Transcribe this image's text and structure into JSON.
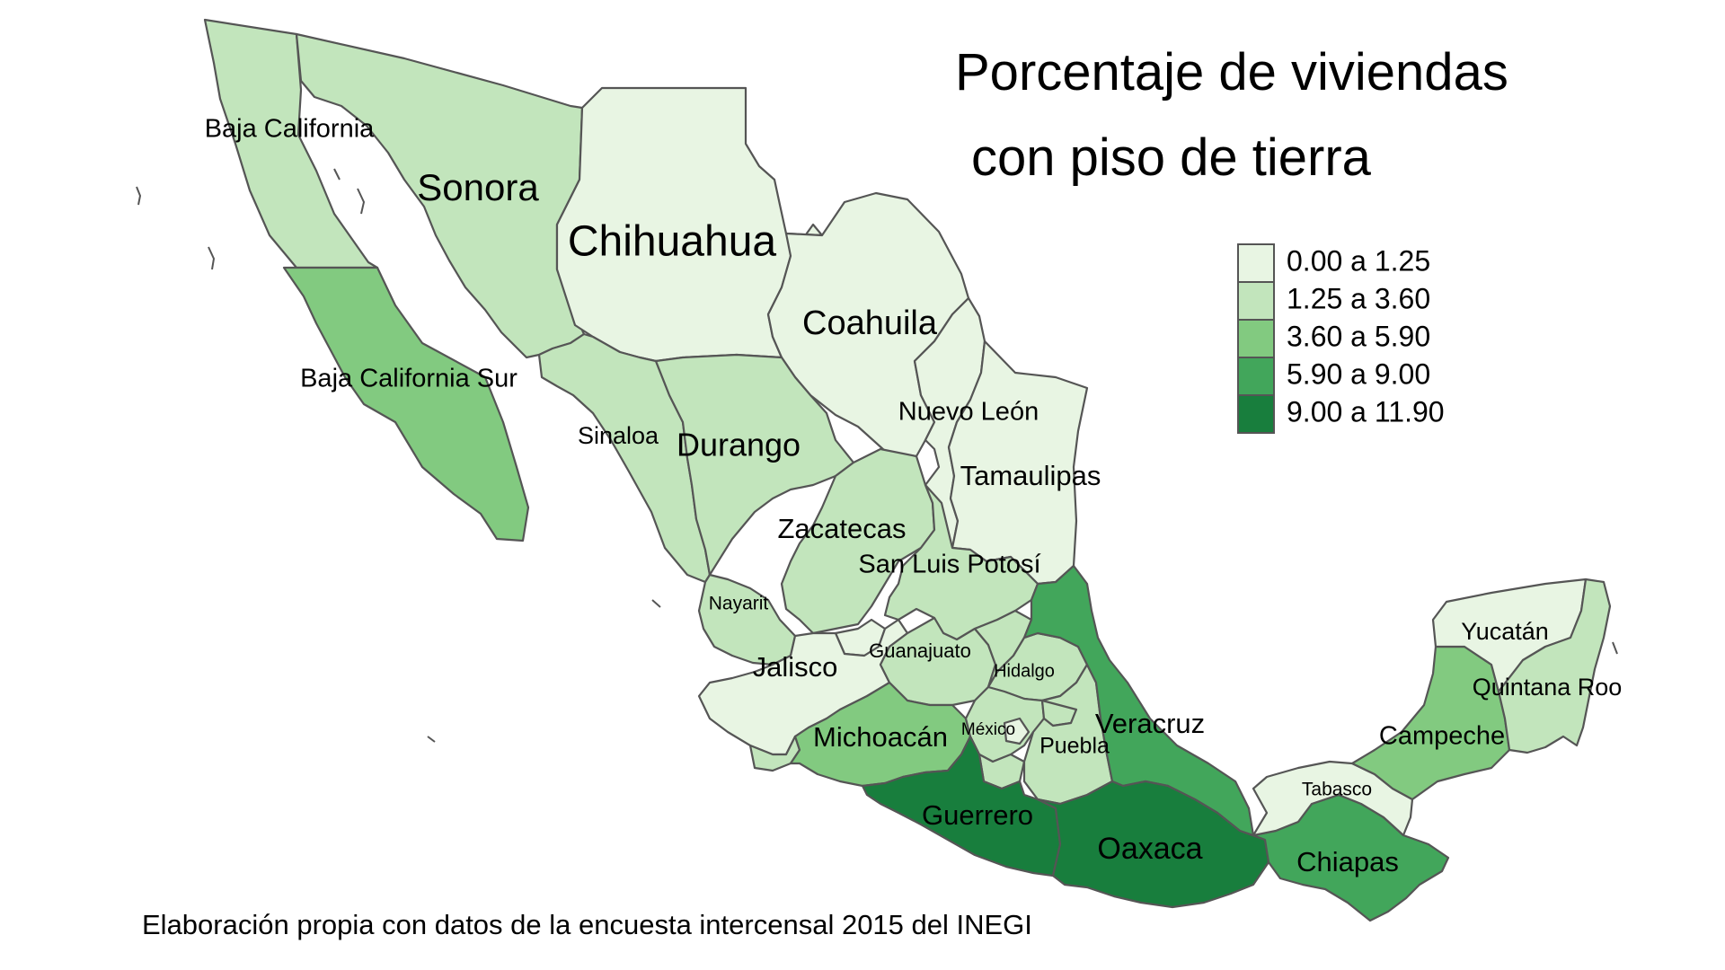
{
  "title": {
    "line1": "Porcentaje de viviendas",
    "line2": "con piso de tierra"
  },
  "legend": {
    "items": [
      {
        "label": "0.00 a 1.25",
        "color": "#e8f5e3"
      },
      {
        "label": "1.25 a 3.60",
        "color": "#c2e5bc"
      },
      {
        "label": "3.60 a 5.90",
        "color": "#82ca80"
      },
      {
        "label": "5.90 a 9.00",
        "color": "#42a65b"
      },
      {
        "label": "9.00 a 11.90",
        "color": "#187e3d"
      }
    ]
  },
  "caption": "Elaboración propia con datos de la encuesta intercensal 2015 del INEGI",
  "states": {
    "baja_california": {
      "label": "Baja California",
      "class": 1
    },
    "baja_california_sur": {
      "label": "Baja California Sur",
      "class": 2
    },
    "sonora": {
      "label": "Sonora",
      "class": 1
    },
    "chihuahua": {
      "label": "Chihuahua",
      "class": 0
    },
    "coahuila": {
      "label": "Coahuila",
      "class": 0
    },
    "nuevo_leon": {
      "label": "Nuevo León",
      "class": 0
    },
    "tamaulipas": {
      "label": "Tamaulipas",
      "class": 0
    },
    "sinaloa": {
      "label": "Sinaloa",
      "class": 1
    },
    "durango": {
      "label": "Durango",
      "class": 1
    },
    "zacatecas": {
      "label": "Zacatecas",
      "class": 1
    },
    "san_luis_potosi": {
      "label": "San Luis Potosí",
      "class": 1
    },
    "nayarit": {
      "label": "Nayarit",
      "class": 1
    },
    "aguascalientes": {
      "label": "",
      "class": 0
    },
    "jalisco": {
      "label": "Jalisco",
      "class": 0
    },
    "guanajuato": {
      "label": "Guanajuato",
      "class": 1
    },
    "queretaro": {
      "label": "",
      "class": 1
    },
    "hidalgo": {
      "label": "Hidalgo",
      "class": 1
    },
    "colima": {
      "label": "",
      "class": 1
    },
    "michoacan": {
      "label": "Michoacán",
      "class": 2
    },
    "mexico": {
      "label": "México",
      "class": 1
    },
    "cdmx": {
      "label": "",
      "class": 0
    },
    "morelos": {
      "label": "",
      "class": 1
    },
    "tlaxcala": {
      "label": "",
      "class": 1
    },
    "puebla": {
      "label": "Puebla",
      "class": 1
    },
    "veracruz": {
      "label": "Veracruz",
      "class": 3
    },
    "guerrero": {
      "label": "Guerrero",
      "class": 4
    },
    "oaxaca": {
      "label": "Oaxaca",
      "class": 4
    },
    "chiapas": {
      "label": "Chiapas",
      "class": 3
    },
    "tabasco": {
      "label": "Tabasco",
      "class": 0
    },
    "campeche": {
      "label": "Campeche",
      "class": 2
    },
    "yucatan": {
      "label": "Yucatán",
      "class": 0
    },
    "quintana_roo": {
      "label": "Quintana Roo",
      "class": 1
    }
  }
}
